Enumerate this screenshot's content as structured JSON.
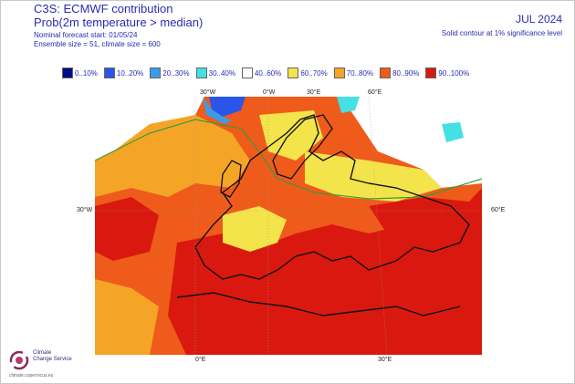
{
  "header": {
    "title": "C3S: ECMWF contribution",
    "subtitle": "Prob(2m temperature > median)",
    "forecast_start": "Nominal forecast start: 01/05/24",
    "ensemble": "Ensemble size = 51, climate size = 600",
    "month": "JUL 2024",
    "significance_note": "Solid contour at 1% significance level"
  },
  "legend": [
    {
      "label": "0..10%",
      "color": "#000a8c"
    },
    {
      "label": "10..20%",
      "color": "#2b55e8"
    },
    {
      "label": "20..30%",
      "color": "#3c9be6"
    },
    {
      "label": "30..40%",
      "color": "#45e0e4"
    },
    {
      "label": "40..60%",
      "color": "#ffffff"
    },
    {
      "label": "60..70%",
      "color": "#f2e44a"
    },
    {
      "label": "70..80%",
      "color": "#f4a526"
    },
    {
      "label": "80..90%",
      "color": "#ef5b1b"
    },
    {
      "label": "90..100%",
      "color": "#d9190f"
    }
  ],
  "axes": {
    "top_ticks": [
      "30°W",
      "0°W",
      "30°E",
      "60°E"
    ],
    "bottom_ticks": [
      "0°E",
      "30°E"
    ],
    "left_tick": "30°W",
    "right_tick": "60°E"
  },
  "logo": {
    "line1": "Climate",
    "line2": "Change Service",
    "line3": "climate.copernicus.eu"
  }
}
